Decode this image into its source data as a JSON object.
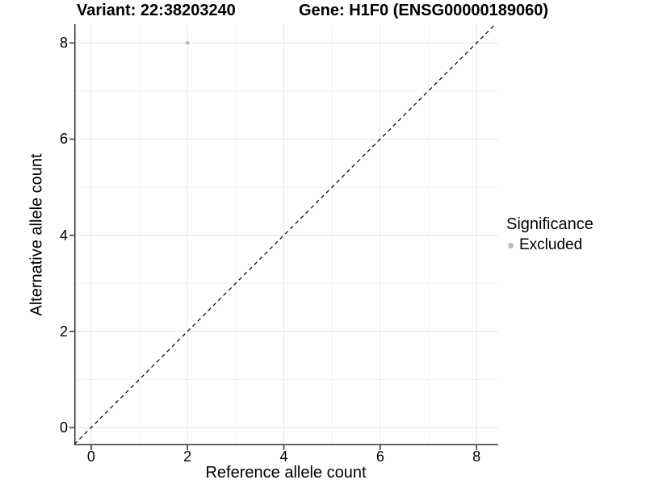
{
  "titles": {
    "variant": "Variant: 22:38203240",
    "gene": "Gene: H1F0 (ENSG00000189060)"
  },
  "axes": {
    "x_label": "Reference allele count",
    "y_label": "Alternative allele count"
  },
  "legend": {
    "title": "Significance",
    "items": [
      {
        "label": "Excluded",
        "color": "#bebebe"
      }
    ]
  },
  "chart_data": {
    "type": "scatter",
    "title": "Variant: 22:38203240    Gene: H1F0 (ENSG00000189060)",
    "xlabel": "Reference allele count",
    "ylabel": "Alternative allele count",
    "xlim": [
      -0.35,
      8.45
    ],
    "ylim": [
      -0.37,
      8.39
    ],
    "x_ticks": [
      0,
      2,
      4,
      6,
      8
    ],
    "y_ticks": [
      0,
      2,
      4,
      6,
      8
    ],
    "x_minor_ticks": [
      1,
      3,
      5,
      7
    ],
    "y_minor_ticks": [
      1,
      3,
      5,
      7
    ],
    "grid": true,
    "legend_position": "right",
    "points": [
      {
        "x": 2,
        "y": 8,
        "series": "Excluded"
      }
    ],
    "reference_line": {
      "type": "identity",
      "style": "dashed",
      "color": "#000000"
    },
    "colors": {
      "point": "#bebebe",
      "grid_major": "#e6e6e6",
      "grid_minor": "#f2f2f2",
      "axis_line": "#333333",
      "tick_mark": "#333333",
      "text": "#000000"
    }
  }
}
